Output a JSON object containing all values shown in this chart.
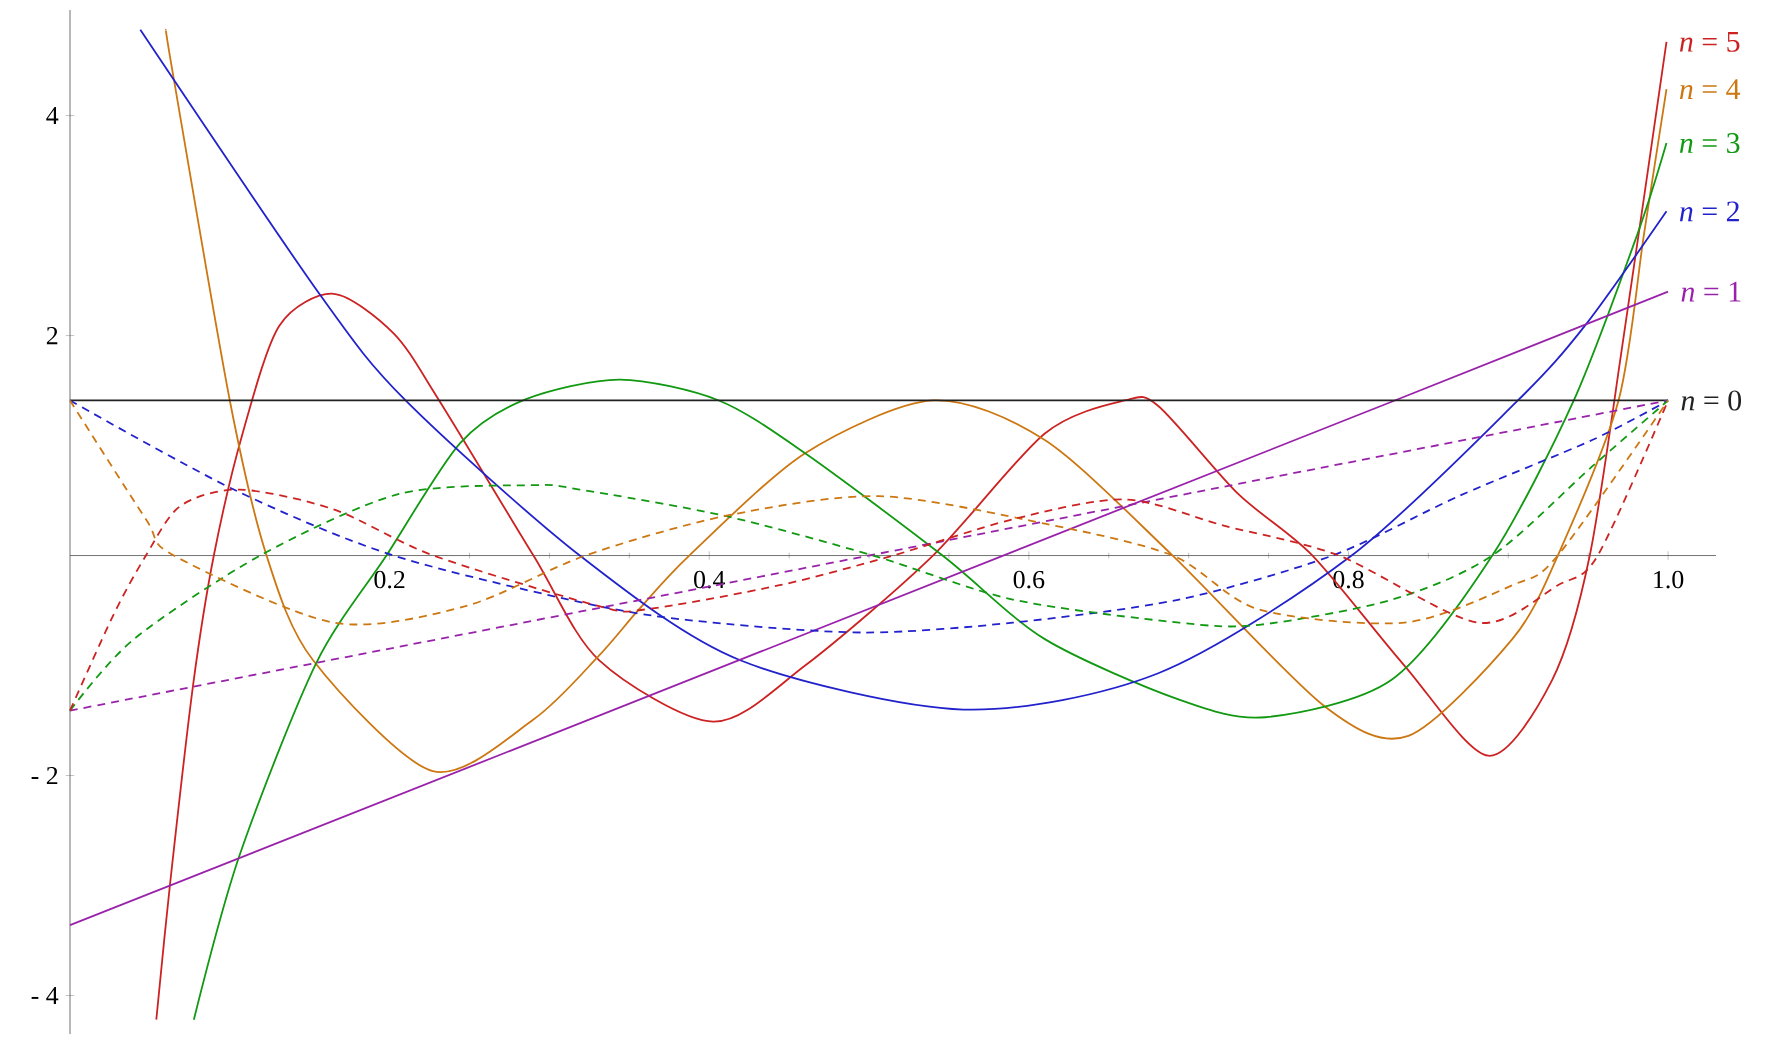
{
  "chart_data": {
    "type": "line",
    "xlim": [
      0,
      1.03
    ],
    "ylim": [
      -4.35,
      4.96
    ],
    "xticks": [
      0.2,
      0.4,
      0.6,
      0.8,
      {
        "value": 1,
        "label": "1.0"
      }
    ],
    "yticks": [
      {
        "value": -4,
        "label": "- 4"
      },
      {
        "value": -2,
        "label": "- 2"
      },
      2,
      4
    ],
    "grid": false,
    "legend": false,
    "marker": "none",
    "series": [
      {
        "name": "*n* = 5",
        "color": "#cc2222",
        "line_style": "solid",
        "x": [
          0.054,
          0.0625,
          0.077,
          0.09,
          0.108,
          0.131,
          0.165,
          0.2025,
          0.231,
          0.29,
          0.331,
          0.4025,
          0.46,
          0.54,
          0.61,
          0.66,
          0.681,
          0.731,
          0.7775,
          0.835,
          0.8875,
          0.9275,
          0.951,
          0.9725,
          0.999
        ],
        "values": [
          -4.22,
          -3.0,
          -1.18,
          0,
          1.11,
          2.09,
          2.38,
          2.02,
          1.41,
          0,
          -0.95,
          -1.51,
          -1.0,
          0,
          1.11,
          1.41,
          1.36,
          0.56,
          0,
          -1.0,
          -1.82,
          -1.13,
          0,
          2.02,
          4.67
        ]
      },
      {
        "name": "*n* = 4",
        "color": "#cc7711",
        "line_style": "solid",
        "x": [
          0.06,
          0.065,
          0.1,
          0.123,
          0.152,
          0.227,
          0.29,
          0.331,
          0.356,
          0.3875,
          0.46,
          0.54,
          0.61,
          0.69,
          0.785,
          0.8375,
          0.9025,
          0.931,
          0.969,
          0.985,
          0.999
        ],
        "values": [
          4.78,
          4.33,
          1.41,
          0,
          -0.95,
          -1.96,
          -1.49,
          -0.91,
          -0.49,
          0,
          0.93,
          1.41,
          1.05,
          0,
          -1.37,
          -1.64,
          -0.76,
          0,
          1.41,
          2.93,
          4.24
        ]
      },
      {
        "name": "*n* = 3",
        "color": "#119911",
        "line_style": "solid",
        "x": [
          0.0775,
          0.106,
          0.154,
          0.198,
          0.244,
          0.285,
          0.344,
          0.406,
          0.46,
          0.546,
          0.61,
          0.694,
          0.748,
          0.827,
          0.89,
          0.941,
          0.981,
          0.999
        ],
        "values": [
          -4.22,
          -2.73,
          -0.98,
          0,
          1.02,
          1.42,
          1.6,
          1.41,
          0.93,
          0,
          -0.76,
          -1.31,
          -1.47,
          -1.13,
          0,
          1.41,
          2.93,
          3.75
        ]
      },
      {
        "name": "*n* = 2",
        "color": "#2222cc",
        "line_style": "solid",
        "x": [
          0.044,
          0.156,
          0.21,
          0.319,
          0.419,
          0.559,
          0.681,
          0.802,
          0.906,
          0.948,
          0.999
        ],
        "values": [
          4.78,
          2.38,
          1.41,
          0,
          -0.95,
          -1.4,
          -1.07,
          0,
          1.41,
          2.09,
          3.13
        ]
      },
      {
        "name": "*n* = 1",
        "color": "#9922aa",
        "line_style": "solid",
        "x": [
          0,
          0.829,
          1
        ],
        "values": [
          -3.36,
          1.41,
          2.4
        ]
      },
      {
        "name": "*n* = 0",
        "color": "#222222",
        "line_style": "solid",
        "x": [
          0,
          1
        ],
        "values": [
          1.41,
          1.41
        ]
      },
      {
        "color": "#9922aa",
        "line_style": "dashed",
        "x": [
          0,
          1
        ],
        "values": [
          -1.41,
          1.41
        ]
      },
      {
        "color": "#2222cc",
        "line_style": "dashed",
        "x": [
          0,
          0.1025,
          0.2025,
          0.331,
          0.4025,
          0.4975,
          0.59,
          0.694,
          0.79,
          0.869,
          0.9525,
          1
        ],
        "values": [
          1.41,
          0.6,
          0,
          -0.46,
          -0.61,
          -0.7,
          -0.61,
          -0.4,
          0,
          0.54,
          1.05,
          1.41
        ]
      },
      {
        "color": "#119911",
        "line_style": "dashed",
        "x": [
          0,
          0.04,
          0.119,
          0.206,
          0.29,
          0.319,
          0.41,
          0.5025,
          0.59,
          0.694,
          0.744,
          0.8275,
          0.89,
          0.9525,
          1
        ],
        "values": [
          -1.41,
          -0.76,
          0,
          0.56,
          0.64,
          0.6,
          0.36,
          0,
          -0.4,
          -0.61,
          -0.63,
          -0.4,
          0,
          0.81,
          1.41
        ]
      },
      {
        "color": "#cc7711",
        "line_style": "dashed",
        "x": [
          0,
          0.0475,
          0.065,
          0.165,
          0.2475,
          0.3225,
          0.41,
          0.506,
          0.61,
          0.69,
          0.744,
          0.835,
          0.9025,
          0.931,
          1
        ],
        "values": [
          1.41,
          0.33,
          0,
          -0.61,
          -0.46,
          0,
          0.36,
          0.54,
          0.29,
          0,
          -0.49,
          -0.61,
          -0.27,
          0,
          1.41
        ]
      },
      {
        "color": "#cc2222",
        "line_style": "dashed",
        "x": [
          0,
          0.0275,
          0.0475,
          0.069,
          0.106,
          0.165,
          0.2275,
          0.331,
          0.36,
          0.444,
          0.515,
          0.59,
          0.66,
          0.7225,
          0.794,
          0.881,
          0.931,
          0.956,
          1
        ],
        "values": [
          -1.41,
          -0.53,
          0,
          0.45,
          0.6,
          0.42,
          0,
          -0.46,
          -0.49,
          -0.27,
          0,
          0.33,
          0.51,
          0.27,
          0,
          -0.61,
          -0.27,
          0,
          1.41
        ]
      }
    ]
  }
}
